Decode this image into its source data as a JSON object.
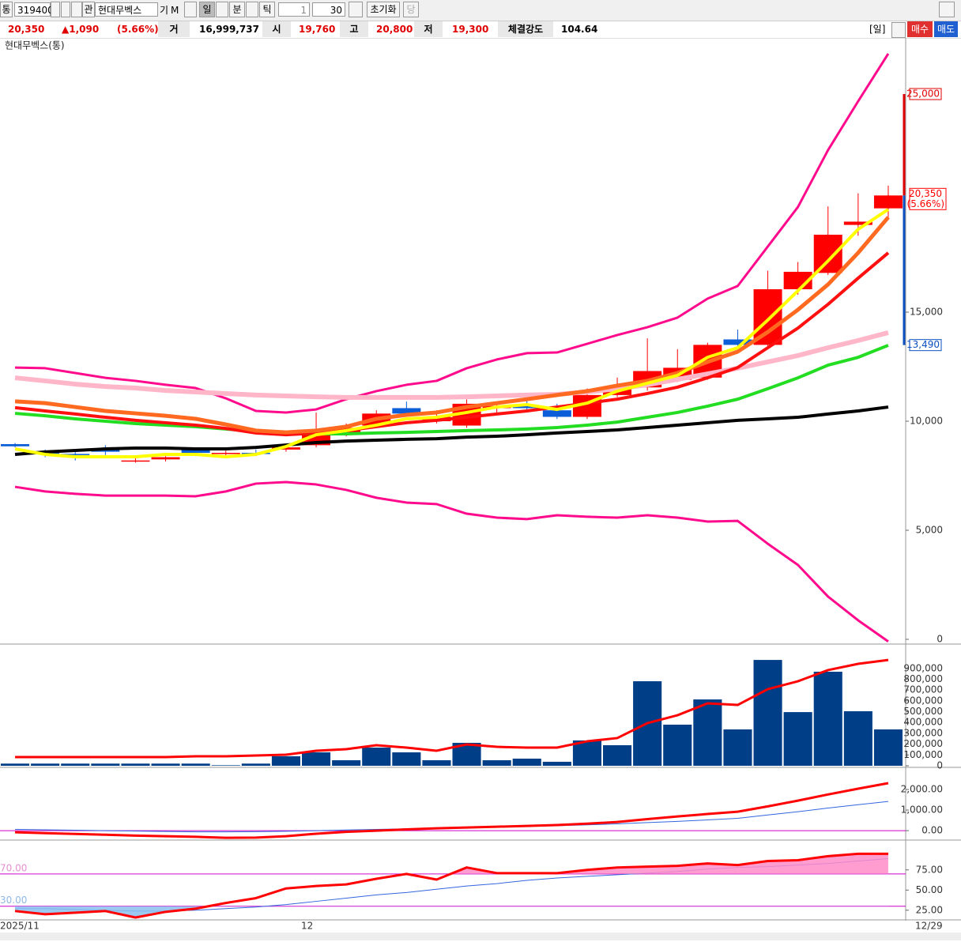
{
  "toolbar": {
    "market": "통",
    "code": "319400",
    "watch": "관",
    "name": "현대무벡스",
    "extra1": "기",
    "extra2": "M",
    "period_buttons": [
      "일",
      "분",
      "틱"
    ],
    "count_unit": "1",
    "count": "30",
    "reset": "초기화",
    "current": "당"
  },
  "quote": {
    "price": "20,350",
    "change": "▲1,090",
    "change_pct": "(5.66%)",
    "volume_label": "거",
    "volume": "16,999,737",
    "open_label": "시",
    "open": "19,760",
    "high_label": "고",
    "high": "20,800",
    "low_label": "저",
    "low": "19,300",
    "strength_label": "체결강도",
    "strength": "104.64",
    "period": "[일]",
    "buy": "매수",
    "sell": "매도"
  },
  "chart_data": [
    {
      "type": "candlestick",
      "title": "현대무벡스(통)",
      "categories": [
        "2025/11",
        null,
        null,
        null,
        null,
        null,
        null,
        null,
        null,
        null,
        "12",
        null,
        null,
        null,
        null,
        null,
        null,
        null,
        null,
        null,
        null,
        null,
        null,
        null,
        null,
        null,
        null,
        null,
        null,
        "12/29"
      ],
      "open": [
        8950,
        8600,
        8500,
        8700,
        8150,
        8250,
        8700,
        8500,
        8550,
        8700,
        8900,
        9450,
        9800,
        10600,
        10000,
        9800,
        10600,
        10700,
        10500,
        10200,
        11200,
        11550,
        11900,
        12000,
        13750,
        13500,
        16050,
        16800,
        19000,
        19760
      ],
      "high": [
        9000,
        8700,
        8600,
        8900,
        8300,
        8400,
        8800,
        8650,
        8700,
        8900,
        10400,
        9900,
        10500,
        10900,
        10500,
        11000,
        10900,
        11000,
        10800,
        11500,
        12000,
        13800,
        13300,
        13600,
        14200,
        16900,
        17300,
        19850,
        20450,
        20800
      ],
      "low": [
        8800,
        8350,
        8200,
        8450,
        8100,
        8150,
        8400,
        8400,
        8400,
        8600,
        8800,
        9300,
        9700,
        10200,
        9900,
        9700,
        10400,
        10400,
        10100,
        10100,
        11100,
        11400,
        11800,
        11900,
        13200,
        13400,
        15800,
        16700,
        18500,
        19300
      ],
      "close": [
        8850,
        8500,
        8450,
        8600,
        8200,
        8350,
        8550,
        8550,
        8500,
        8800,
        9550,
        9700,
        10350,
        10350,
        10200,
        10800,
        10700,
        10600,
        10200,
        11200,
        11550,
        12300,
        12450,
        13500,
        13500,
        16050,
        16850,
        18550,
        19150,
        20350
      ],
      "up_color": "#ff0000",
      "down_color": "#0b5ed7",
      "ylim": [
        0,
        27500
      ],
      "yticks": [
        0,
        {
          "value": 5000,
          "label": "5,000"
        },
        {
          "value": 10000,
          "label": "10,000"
        },
        {
          "value": 15000,
          "label": "15,000"
        }
      ],
      "price_marks": [
        {
          "value": 25000,
          "label": "25,000",
          "color": "#e00000"
        },
        {
          "value": 13490,
          "label": "13,490",
          "color": "#0b4fc0"
        }
      ],
      "lines": [
        {
          "color": "#ff0a8c",
          "width": 3,
          "values": [
            12460,
            12430,
            12210,
            11990,
            11850,
            11670,
            11520,
            11050,
            10470,
            10400,
            10540,
            11010,
            11380,
            11670,
            11850,
            12430,
            12830,
            13120,
            13150,
            13550,
            13950,
            14310,
            14750,
            15620,
            16200,
            18010,
            19820,
            22430,
            24670,
            26850
          ]
        },
        {
          "color": "#ff0a8c",
          "width": 3,
          "values": [
            6990,
            6780,
            6670,
            6590,
            6590,
            6590,
            6560,
            6780,
            7140,
            7210,
            7100,
            6850,
            6490,
            6270,
            6200,
            5760,
            5580,
            5510,
            5690,
            5620,
            5580,
            5690,
            5580,
            5400,
            5430,
            4380,
            3410,
            1960,
            870,
            -100
          ]
        },
        {
          "color": "#ffb6c8",
          "width": 6,
          "values": [
            11990,
            11850,
            11700,
            11590,
            11520,
            11410,
            11340,
            11270,
            11200,
            11160,
            11120,
            11090,
            11090,
            11090,
            11090,
            11120,
            11160,
            11200,
            11230,
            11340,
            11490,
            11670,
            11920,
            12170,
            12430,
            12720,
            13010,
            13370,
            13700,
            14060
          ]
        },
        {
          "color": "#000000",
          "width": 4,
          "values": [
            8480,
            8590,
            8660,
            8730,
            8770,
            8770,
            8730,
            8730,
            8800,
            8910,
            9020,
            9090,
            9130,
            9170,
            9200,
            9270,
            9310,
            9380,
            9460,
            9530,
            9600,
            9710,
            9820,
            9930,
            10040,
            10110,
            10180,
            10330,
            10470,
            10650
          ]
        },
        {
          "color": "#22dd22",
          "width": 4,
          "values": [
            10360,
            10250,
            10110,
            10000,
            9890,
            9820,
            9750,
            9640,
            9530,
            9460,
            9420,
            9420,
            9460,
            9490,
            9530,
            9570,
            9600,
            9640,
            9710,
            9820,
            9960,
            10180,
            10400,
            10690,
            11010,
            11490,
            11990,
            12570,
            12930,
            13480
          ]
        },
        {
          "color": "#ff1010",
          "width": 4,
          "values": [
            10620,
            10470,
            10330,
            10180,
            10040,
            9930,
            9820,
            9670,
            9460,
            9380,
            9460,
            9570,
            9750,
            9930,
            10040,
            10180,
            10330,
            10470,
            10650,
            10830,
            11010,
            11270,
            11560,
            11990,
            12460,
            13370,
            14270,
            15360,
            16560,
            17720
          ]
        },
        {
          "color": "#ff6a20",
          "width": 5,
          "values": [
            10910,
            10830,
            10650,
            10470,
            10360,
            10250,
            10110,
            9850,
            9570,
            9490,
            9570,
            9750,
            10110,
            10290,
            10400,
            10650,
            10830,
            11010,
            11200,
            11380,
            11630,
            11850,
            12210,
            12720,
            13190,
            14090,
            15110,
            16270,
            17720,
            19350
          ]
        },
        {
          "color": "#ffff00",
          "width": 4,
          "values": [
            8730,
            8480,
            8370,
            8370,
            8370,
            8480,
            8480,
            8370,
            8480,
            8840,
            9380,
            9570,
            9820,
            10110,
            10180,
            10400,
            10650,
            10760,
            10540,
            10830,
            11380,
            11740,
            12100,
            12930,
            13370,
            14640,
            15980,
            17350,
            18800,
            19710
          ]
        }
      ]
    },
    {
      "type": "bar",
      "color": "#003f87",
      "values": [
        20000,
        20000,
        20000,
        20000,
        20000,
        20000,
        20000,
        5000,
        20000,
        88000,
        124000,
        51000,
        168000,
        124000,
        51000,
        212000,
        51000,
        66000,
        37000,
        234000,
        190000,
        781000,
        380000,
        613000,
        336000,
        978000,
        496000,
        869000,
        504000,
        336000
      ],
      "ylim": [
        0,
        1110000
      ],
      "yticks": [
        0,
        {
          "value": 100000,
          "label": "100,000"
        },
        {
          "value": 200000,
          "label": "200,000"
        },
        {
          "value": 300000,
          "label": "300,000"
        },
        {
          "value": 400000,
          "label": "400,000"
        },
        {
          "value": 500000,
          "label": "500,000"
        },
        {
          "value": 600000,
          "label": "600,000"
        },
        {
          "value": 700000,
          "label": "700,000"
        },
        {
          "value": 800000,
          "label": "800,000"
        },
        {
          "value": 900000,
          "label": "900,000"
        }
      ],
      "lines": [
        {
          "color": "#ff0000",
          "width": 3,
          "values": [
            80000,
            80000,
            80000,
            80000,
            80000,
            80000,
            88000,
            88000,
            95000,
            102000,
            139000,
            153000,
            190000,
            168000,
            139000,
            197000,
            175000,
            168000,
            168000,
            226000,
            256000,
            394000,
            467000,
            577000,
            562000,
            708000,
            781000,
            884000,
            942000,
            978000
          ]
        }
      ]
    },
    {
      "type": "line",
      "ylim": [
        -420,
        3040
      ],
      "yticks": [
        {
          "value": 0,
          "label": "0.00"
        },
        {
          "value": 1000,
          "label": "1,000.00"
        },
        {
          "value": 2000,
          "label": "2,000.00"
        }
      ],
      "hlines": [
        {
          "value": 0,
          "color": "#cc00cc"
        }
      ],
      "lines": [
        {
          "color": "#3366dd",
          "width": 1,
          "values": [
            60,
            40,
            20,
            0,
            -20,
            -40,
            -60,
            -60,
            -50,
            -30,
            0,
            30,
            60,
            90,
            120,
            150,
            180,
            210,
            240,
            280,
            330,
            390,
            450,
            520,
            600,
            760,
            920,
            1100,
            1260,
            1420
          ]
        },
        {
          "color": "#ff0000",
          "width": 3,
          "values": [
            -80,
            -120,
            -160,
            -200,
            -240,
            -270,
            -300,
            -350,
            -340,
            -270,
            -150,
            -60,
            0,
            60,
            115,
            150,
            190,
            230,
            270,
            340,
            420,
            560,
            690,
            810,
            920,
            1180,
            1460,
            1760,
            2040,
            2310
          ]
        }
      ]
    },
    {
      "type": "line",
      "ylim": [
        15,
        111
      ],
      "yticks": [
        {
          "value": 25,
          "label": "25.00"
        },
        {
          "value": 50,
          "label": "50.00"
        },
        {
          "value": 75,
          "label": "75.00"
        }
      ],
      "hlines": [
        {
          "value": 70,
          "label": "70.00",
          "color": "#cc00cc",
          "label_color": "#e58fd0"
        },
        {
          "value": 30,
          "label": "30.00",
          "color": "#cc00cc",
          "label_color": "#8fb8e5"
        }
      ],
      "fill_above": "#ff8cc8",
      "fill_below": "#8cc0ee",
      "lines": [
        {
          "color": "#3366dd",
          "width": 1,
          "values": [
            27,
            27,
            26,
            25,
            24,
            24,
            25,
            27,
            29,
            32,
            36,
            40,
            44,
            47,
            51,
            55,
            58,
            62,
            65,
            67,
            69,
            71,
            73,
            76,
            78,
            79,
            81,
            83,
            86,
            89
          ]
        },
        {
          "color": "#ff0000",
          "width": 3,
          "fill": true,
          "values": [
            24,
            20,
            22,
            24,
            16,
            23,
            27,
            34,
            40,
            52,
            55,
            57,
            64,
            70,
            63,
            78,
            71,
            71,
            71,
            75,
            78,
            79,
            80,
            83,
            81,
            86,
            87,
            92,
            95,
            95
          ]
        }
      ]
    }
  ]
}
